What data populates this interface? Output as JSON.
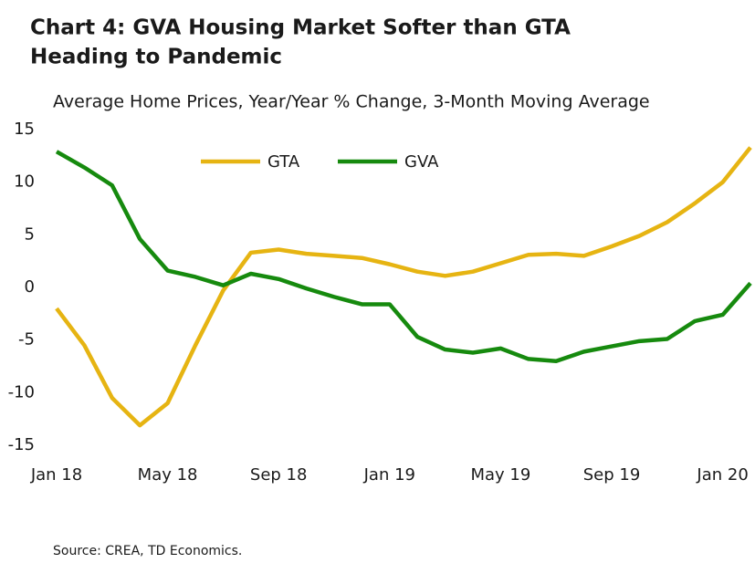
{
  "chart_data": {
    "type": "line",
    "title": [
      "Chart 4: GVA Housing Market Softer than GTA",
      "Heading to Pandemic"
    ],
    "subtitle": "Average Home Prices, Year/Year % Change, 3-Month Moving Average",
    "source": "Source: CREA, TD Economics.",
    "categories": [
      "Jan 18",
      null,
      null,
      null,
      "May 18",
      null,
      null,
      null,
      "Sep 18",
      null,
      null,
      null,
      "Jan 19",
      null,
      null,
      null,
      "May 19",
      null,
      null,
      null,
      "Sep 19",
      null,
      null,
      null,
      "Jan 20",
      null
    ],
    "series": [
      {
        "name": "GTA",
        "color": "#e6b412",
        "values": [
          -2.0,
          -5.5,
          -10.5,
          -13.1,
          -11.0,
          -5.5,
          -0.3,
          3.3,
          3.6,
          3.2,
          3.0,
          2.8,
          2.2,
          1.5,
          1.1,
          1.5,
          2.3,
          3.1,
          3.2,
          3.0,
          3.9,
          4.9,
          6.2,
          8.0,
          10.0,
          13.3
        ]
      },
      {
        "name": "GVA",
        "color": "#168a0e",
        "values": [
          12.9,
          11.4,
          9.7,
          4.6,
          1.6,
          1.0,
          0.2,
          1.3,
          0.8,
          -0.1,
          -0.9,
          -1.6,
          -1.6,
          -4.7,
          -5.9,
          -6.2,
          -5.8,
          -6.8,
          -7.0,
          -6.1,
          -5.6,
          -5.1,
          -4.9,
          -3.2,
          -2.6,
          0.4
        ]
      }
    ],
    "ylim": [
      -15,
      15
    ],
    "yticks": [
      -15,
      -10,
      -5,
      0,
      5,
      10,
      15
    ],
    "grid": false
  }
}
